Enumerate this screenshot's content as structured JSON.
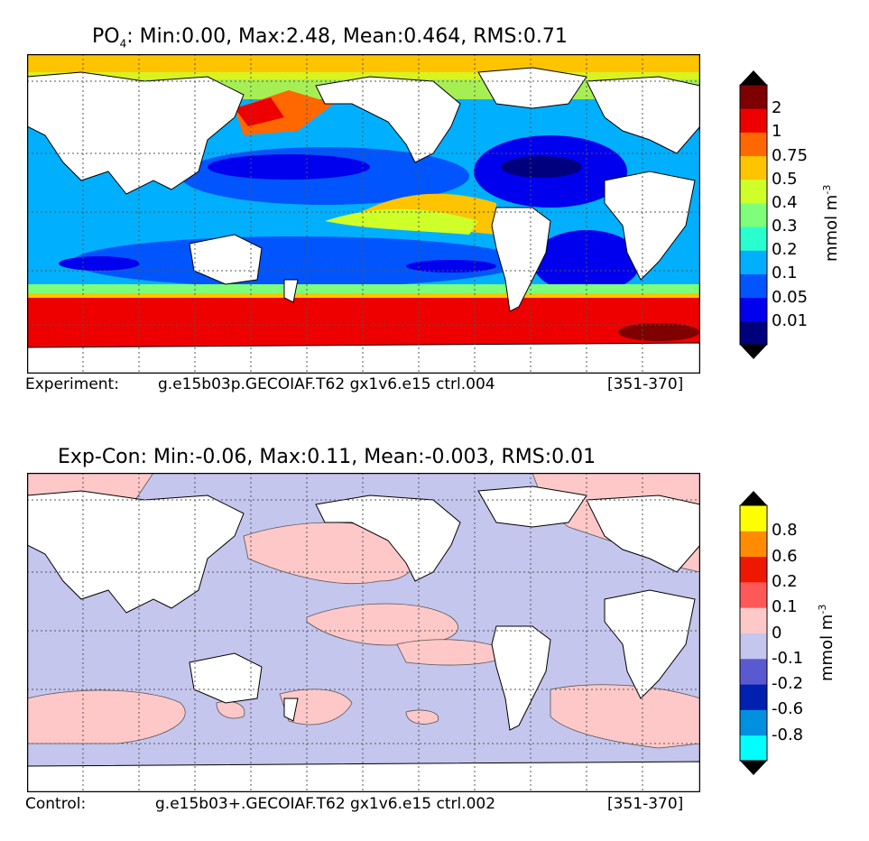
{
  "top_panel": {
    "title_prefix": "PO",
    "title_sub": "4",
    "title_rest": ": Min:0.00, Max:2.48, Mean:0.464, RMS:0.71",
    "caption_left": "Experiment:",
    "caption_mid": "g.e15b03p.GECOIAF.T62 gx1v6.e15 ctrl.004",
    "caption_right": "[351-370]",
    "colorbar": {
      "unit": "mmol m",
      "unit_exp": "-3",
      "colors": [
        "#00007f",
        "#0000ee",
        "#0055ff",
        "#00b0ff",
        "#29ffce",
        "#7dff7a",
        "#ceff29",
        "#ffc400",
        "#ff6800",
        "#ee0000",
        "#7f0000"
      ],
      "ticks": [
        "0.01",
        "0.05",
        "0.1",
        "0.2",
        "0.3",
        "0.4",
        "0.5",
        "0.75",
        "1",
        "2"
      ]
    }
  },
  "bottom_panel": {
    "title": "Exp-Con: Min:-0.06, Max:0.11, Mean:-0.003, RMS:0.01",
    "caption_left": "Control:",
    "caption_mid": "g.e15b03+.GECOIAF.T62 gx1v6.e15 ctrl.002",
    "caption_right": "[351-370]",
    "colorbar": {
      "unit": "mmol m",
      "unit_exp": "-3",
      "colors": [
        "#00ffff",
        "#0090e0",
        "#0020b0",
        "#5a5ad0",
        "#c4c6ee",
        "#ffc8c8",
        "#ff5858",
        "#ee1800",
        "#ff8c00",
        "#ffff00"
      ],
      "ticks": [
        "-0.8",
        "-0.6",
        "-0.2",
        "-0.1",
        "0",
        "0.1",
        "0.2",
        "0.6",
        "0.8"
      ]
    }
  }
}
